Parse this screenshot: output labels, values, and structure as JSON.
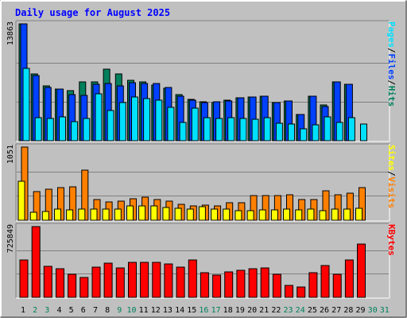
{
  "title": "Daily usage for August 2025",
  "colors": {
    "background": "#c0c0c0",
    "title": "#0000ff",
    "hits": "#00805c",
    "files": "#0040ff",
    "pages": "#00e0ff",
    "visits": "#ff8000",
    "sites": "#ffff00",
    "kbytes": "#ff0000",
    "grid": "#808080",
    "weekend_day": "#00805c",
    "weekday": "#000000"
  },
  "chart_data": {
    "type": "bar",
    "title": "Daily usage for August 2025",
    "categories": [
      "1",
      "2",
      "3",
      "4",
      "5",
      "6",
      "7",
      "8",
      "9",
      "10",
      "11",
      "12",
      "13",
      "14",
      "15",
      "16",
      "17",
      "18",
      "19",
      "20",
      "21",
      "22",
      "23",
      "24",
      "25",
      "26",
      "27",
      "28",
      "29",
      "30",
      "31"
    ],
    "weekend_days": [
      "2",
      "3",
      "9",
      "10",
      "16",
      "17",
      "23",
      "24",
      "30",
      "31"
    ],
    "panels": [
      {
        "name": "hits-files-pages",
        "ymax_label": "13863",
        "ymax": 13863,
        "legend": [
          "Hits",
          "Files",
          "Pages"
        ],
        "series": [
          {
            "name": "Hits",
            "values": [
              13863,
              7900,
              6500,
              6100,
              5900,
              7000,
              7000,
              8500,
              7900,
              7200,
              7000,
              6600,
              6200,
              5500,
              4900,
              4600,
              4500,
              4800,
              5100,
              5200,
              5300,
              4500,
              4700,
              3100,
              5300,
              4200,
              7000,
              6700,
              0,
              0,
              0
            ]
          },
          {
            "name": "Files",
            "values": [
              13863,
              7700,
              6300,
              6100,
              5500,
              5400,
              6700,
              6800,
              6500,
              6900,
              6800,
              6800,
              6300,
              5300,
              4800,
              4500,
              4600,
              4700,
              5100,
              5200,
              5300,
              4500,
              4700,
              3100,
              5300,
              4100,
              7000,
              6700,
              0,
              0,
              0
            ]
          },
          {
            "name": "Pages",
            "values": [
              8600,
              2700,
              2600,
              2800,
              2300,
              2600,
              5600,
              3600,
              4500,
              5200,
              5000,
              4800,
              4000,
              2200,
              3900,
              2700,
              2600,
              2700,
              2600,
              2500,
              2700,
              2100,
              2000,
              1400,
              1900,
              2800,
              2200,
              2700,
              2000,
              0,
              0
            ]
          }
        ]
      },
      {
        "name": "visits-sites",
        "ymax_label": "1051",
        "ymax": 1051,
        "legend": [
          "Visits",
          "Sites"
        ],
        "series": [
          {
            "name": "Visits",
            "values": [
              1051,
              410,
              440,
              470,
              480,
              720,
              300,
              260,
              270,
              310,
              330,
              300,
              270,
              230,
              210,
              220,
              210,
              250,
              250,
              350,
              350,
              350,
              360,
              300,
              300,
              420,
              360,
              390,
              470,
              0,
              0
            ]
          },
          {
            "name": "Sites",
            "values": [
              560,
              110,
              130,
              160,
              150,
              160,
              160,
              160,
              160,
              200,
              200,
              200,
              180,
              170,
              160,
              190,
              160,
              160,
              140,
              140,
              150,
              150,
              160,
              150,
              160,
              140,
              160,
              160,
              170,
              0,
              0
            ]
          }
        ]
      },
      {
        "name": "kbytes",
        "ymax_label": "725849",
        "ymax": 725849,
        "legend": [
          "KBytes"
        ],
        "series": [
          {
            "name": "KBytes",
            "values": [
              380000,
              725849,
              320000,
              290000,
              240000,
              200000,
              310000,
              350000,
              300000,
              360000,
              360000,
              360000,
              340000,
              310000,
              380000,
              250000,
              230000,
              260000,
              280000,
              290000,
              300000,
              240000,
              120000,
              110000,
              250000,
              330000,
              240000,
              380000,
              550000,
              0,
              0
            ]
          }
        ]
      }
    ]
  }
}
